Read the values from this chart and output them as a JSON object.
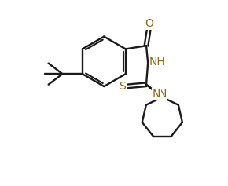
{
  "background_color": "#ffffff",
  "line_color": "#1a1a1a",
  "atom_colors": {
    "O": "#8b6914",
    "N": "#8b6914",
    "S": "#8b6914"
  },
  "line_width": 1.7,
  "font_size": 10,
  "figsize": [
    2.9,
    2.37
  ],
  "dpi": 100,
  "xlim": [
    -2.2,
    3.8
  ],
  "ylim": [
    -3.2,
    2.4
  ]
}
